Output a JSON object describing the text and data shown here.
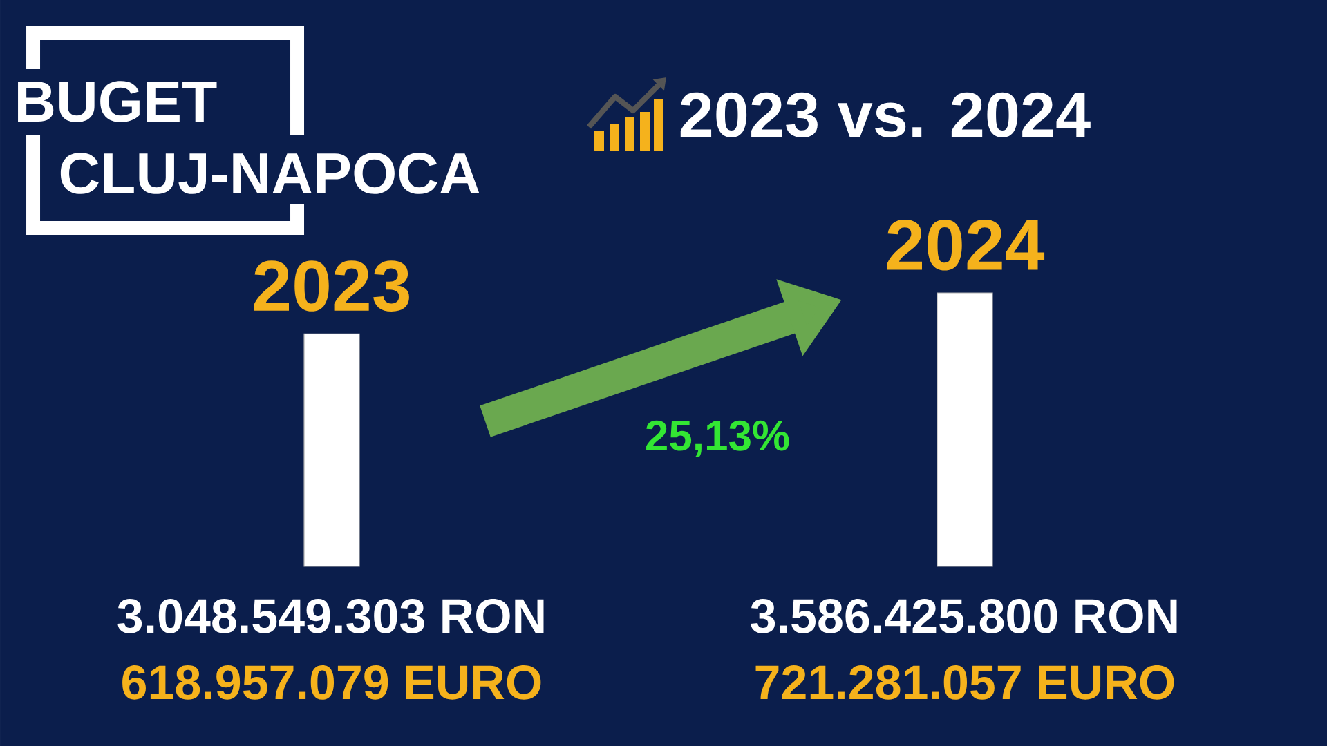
{
  "chart_data": {
    "type": "bar",
    "title": "BUGET CLUJ-NAPOCA",
    "subtitle": "2023 vs. 2024",
    "categories": [
      "2023",
      "2024"
    ],
    "values": [
      3048549303,
      3586425800
    ],
    "value_labels": [
      "3.048.549.303 RON",
      "3.586.425.800 RON"
    ],
    "color": "#ffffff",
    "annotations": [
      "618.957.079 EURO",
      "721.281.057 EURO",
      "25,13%"
    ]
  }
}
